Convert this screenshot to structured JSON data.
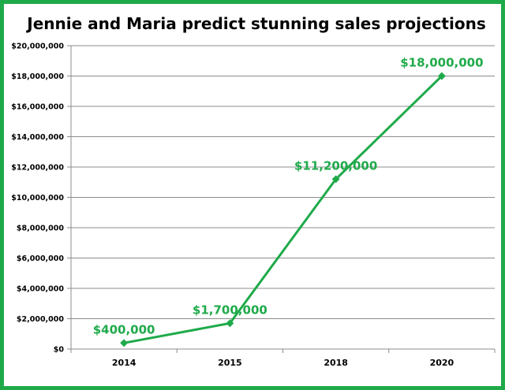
{
  "colors": {
    "frame": "#1faa4a",
    "series": "#1faa4a",
    "data_label": "#1faa4a",
    "gridline": "#8c8c8c",
    "axis": "#8c8c8c"
  },
  "chart_data": {
    "type": "line",
    "title": "Jennie and Maria predict stunning sales projections",
    "xlabel": "",
    "ylabel": "",
    "categories": [
      "2014",
      "2015",
      "2018",
      "2020"
    ],
    "series": [
      {
        "values": [
          400000,
          1700000,
          11200000,
          18000000
        ],
        "labels": [
          "$400,000",
          "$1,700,000",
          "$11,200,000",
          "$18,000,000"
        ]
      }
    ],
    "ylim": [
      0,
      20000000
    ],
    "yticks": [
      {
        "value": 0,
        "label": "$0"
      },
      {
        "value": 2000000,
        "label": "$2,000,000"
      },
      {
        "value": 4000000,
        "label": "$4,000,000"
      },
      {
        "value": 6000000,
        "label": "$6,000,000"
      },
      {
        "value": 8000000,
        "label": "$8,000,000"
      },
      {
        "value": 10000000,
        "label": "$10,000,000"
      },
      {
        "value": 12000000,
        "label": "$12,000,000"
      },
      {
        "value": 14000000,
        "label": "$14,000,000"
      },
      {
        "value": 16000000,
        "label": "$16,000,000"
      },
      {
        "value": 18000000,
        "label": "$18,000,000"
      },
      {
        "value": 20000000,
        "label": "$20,000,000"
      }
    ],
    "grid": true,
    "legend": "none"
  }
}
